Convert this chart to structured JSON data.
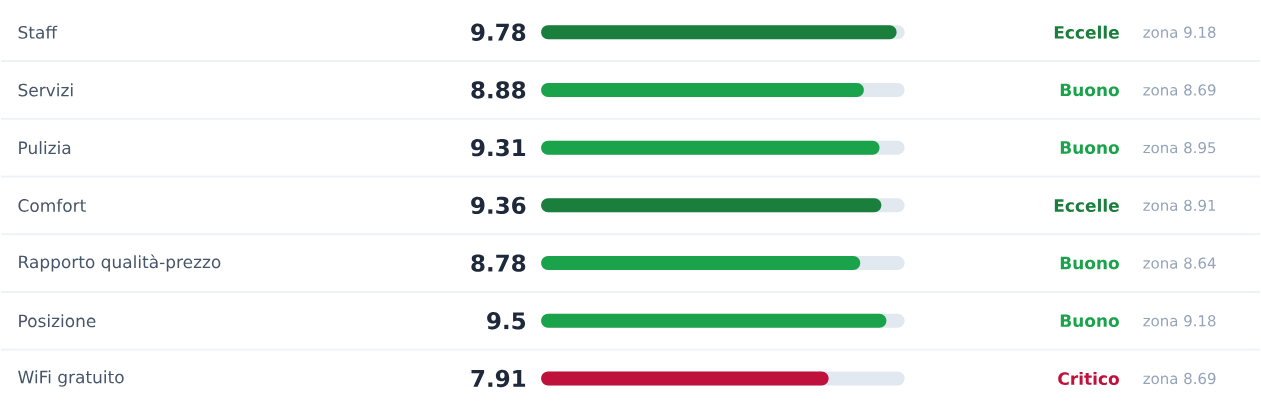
{
  "chart_data": {
    "type": "bar",
    "orientation": "horizontal",
    "categories": [
      "Staff",
      "Servizi",
      "Pulizia",
      "Comfort",
      "Rapporto qualità-prezzo",
      "Posizione",
      "WiFi gratuito"
    ],
    "values": [
      9.78,
      8.88,
      9.31,
      9.36,
      8.78,
      9.5,
      7.91
    ],
    "value_labels": [
      "9.78",
      "8.88",
      "9.31",
      "9.36",
      "8.78",
      "9.5",
      "7.91"
    ],
    "colors": [
      "#1a7f3c",
      "#1ba34b",
      "#1ba34b",
      "#1a7f3c",
      "#1ba34b",
      "#1ba34b",
      "#be123c"
    ],
    "grid": "y",
    "annotations": [
      "Eccelle",
      "zona 9.18",
      "Buono",
      "zona 8.69",
      "Buono",
      "zona 8.95",
      "Eccelle",
      "zona 8.91",
      "Buono",
      "zona 8.64",
      "Buono",
      "zona 9.18",
      "Critico",
      "zona 8.69"
    ]
  }
}
